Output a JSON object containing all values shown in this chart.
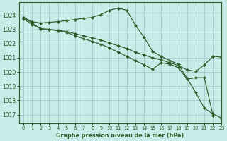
{
  "title": "Graphe pression niveau de la mer (hPa)",
  "bg_color": "#c8ede8",
  "grid_color": "#a0ccc8",
  "line_color": "#2a5c2a",
  "xlim": [
    -0.5,
    23
  ],
  "ylim": [
    1016.4,
    1024.9
  ],
  "yticks": [
    1017,
    1018,
    1019,
    1020,
    1021,
    1022,
    1023,
    1024
  ],
  "xticks": [
    0,
    1,
    2,
    3,
    4,
    5,
    6,
    7,
    8,
    9,
    10,
    11,
    12,
    13,
    14,
    15,
    16,
    17,
    18,
    19,
    20,
    21,
    22,
    23
  ],
  "line1_x": [
    0,
    1,
    2,
    3,
    4,
    5,
    6,
    7,
    8,
    9,
    10,
    11,
    12,
    13,
    14,
    15,
    16,
    17,
    18,
    19,
    20,
    21,
    22,
    23
  ],
  "line1_y": [
    1023.85,
    1023.55,
    1023.45,
    1023.5,
    1023.55,
    1023.62,
    1023.7,
    1023.78,
    1023.85,
    1024.05,
    1024.35,
    1024.5,
    1024.35,
    1023.3,
    1022.45,
    1021.45,
    1021.1,
    1020.8,
    1020.55,
    1019.55,
    1018.55,
    1017.45,
    1017.05,
    1016.75
  ],
  "line2_x": [
    0,
    1,
    2,
    3,
    4,
    5,
    6,
    7,
    8,
    9,
    10,
    11,
    12,
    13,
    14,
    15,
    16,
    17,
    18,
    19,
    20,
    21,
    22,
    23
  ],
  "line2_y": [
    1023.85,
    1023.45,
    1023.05,
    1023.0,
    1022.95,
    1022.85,
    1022.7,
    1022.55,
    1022.4,
    1022.25,
    1022.05,
    1021.85,
    1021.65,
    1021.4,
    1021.2,
    1021.0,
    1020.85,
    1020.65,
    1020.45,
    1020.15,
    1020.05,
    1020.5,
    1021.1,
    1021.05
  ],
  "line3_x": [
    0,
    1,
    2,
    3,
    4,
    5,
    6,
    7,
    8,
    9,
    10,
    11,
    12,
    13,
    14,
    15,
    16,
    17,
    18,
    19,
    20,
    21,
    22
  ],
  "line3_y": [
    1023.75,
    1023.35,
    1023.05,
    1023.0,
    1022.9,
    1022.8,
    1022.55,
    1022.35,
    1022.15,
    1021.95,
    1021.7,
    1021.4,
    1021.1,
    1020.8,
    1020.5,
    1020.2,
    1020.65,
    1020.55,
    1020.3,
    1019.5,
    1019.6,
    1019.6,
    1016.95
  ]
}
